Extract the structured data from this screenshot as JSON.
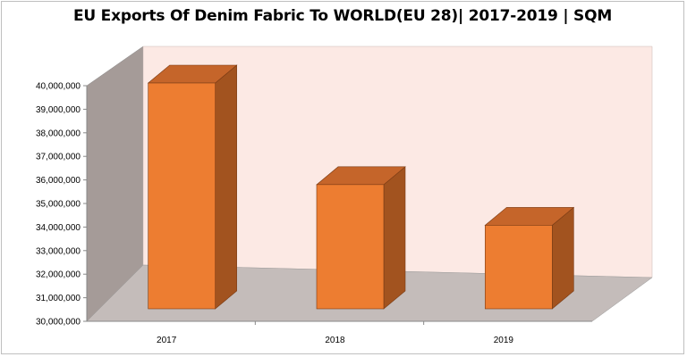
{
  "chart_data": {
    "type": "bar",
    "title": "EU Exports Of Denim Fabric To WORLD(EU 28)| 2017-2019 | SQM",
    "categories": [
      "2017",
      "2018",
      "2019"
    ],
    "values": [
      40000000,
      35500000,
      33700000
    ],
    "ylim": [
      30000000,
      40000000
    ],
    "yticks": [
      "30,000,000",
      "31,000,000",
      "32,000,000",
      "33,000,000",
      "34,000,000",
      "35,000,000",
      "36,000,000",
      "37,000,000",
      "38,000,000",
      "39,000,000",
      "40,000,000"
    ],
    "xlabel": "",
    "ylabel": "",
    "style": "3d-column",
    "colors": {
      "bar_front": "#ed7d31",
      "bar_side": "#a2531f",
      "bar_top": "#c5652a",
      "back_wall": "#fce9e4",
      "side_wall": "#a59b98",
      "floor": "#c4bcba"
    }
  }
}
